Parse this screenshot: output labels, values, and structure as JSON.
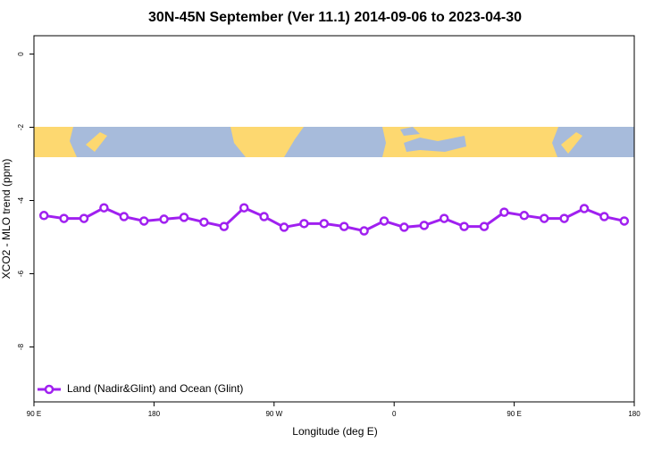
{
  "chart_data": {
    "type": "line",
    "title": "30N-45N September (Ver 11.1)   2014-09-06 to 2023-04-30",
    "x_label": "Longitude (deg E)",
    "y_label": "XCO2 - MLO trend (ppm)",
    "x": [
      97.5,
      112.5,
      127.5,
      142.5,
      157.5,
      172.5,
      187.5,
      202.5,
      217.5,
      232.5,
      247.5,
      262.5,
      277.5,
      292.5,
      307.5,
      322.5,
      337.5,
      352.5,
      367.5,
      382.5,
      397.5,
      412.5,
      427.5,
      442.5,
      457.5,
      472.5,
      487.5,
      502.5,
      517.5,
      532.5
    ],
    "series": [
      {
        "name": "Land (Nadir&Glint) and Ocean (Glint)",
        "color": "#a020f0",
        "values": [
          -4.41,
          -4.49,
          -4.49,
          -4.2,
          -4.44,
          -4.56,
          -4.51,
          -4.46,
          -4.59,
          -4.71,
          -4.2,
          -4.44,
          -4.73,
          -4.63,
          -4.63,
          -4.71,
          -4.83,
          -4.56,
          -4.73,
          -4.68,
          -4.49,
          -4.71,
          -4.71,
          -4.32,
          -4.41,
          -4.49,
          -4.49,
          -4.22,
          -4.44,
          -4.56
        ]
      }
    ],
    "xlim": [
      90,
      540
    ],
    "xticks": [
      {
        "value": 90,
        "label": "90 E"
      },
      {
        "value": 180,
        "label": "180"
      },
      {
        "value": 270,
        "label": "90 W"
      },
      {
        "value": 360,
        "label": "0"
      },
      {
        "value": 450,
        "label": "90 E"
      },
      {
        "value": 540,
        "label": "180"
      }
    ],
    "ylim": [
      -9.5,
      0.5
    ],
    "yticks": [
      0,
      -2,
      -4,
      -6,
      -8
    ],
    "legend": "bottom-left"
  }
}
